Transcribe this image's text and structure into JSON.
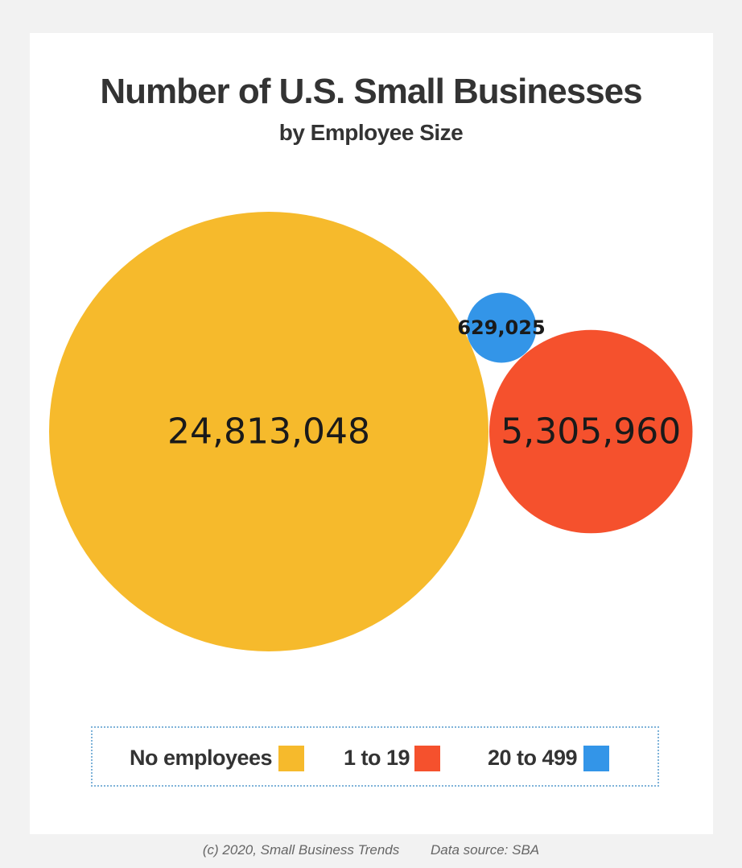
{
  "chart_data": {
    "type": "bubble",
    "title": "Number of U.S. Small Businesses",
    "subtitle": "by Employee Size",
    "series": [
      {
        "name": "No employees",
        "value": 24813048,
        "label": "24,813,048",
        "color": "#F6BA2C"
      },
      {
        "name": "1 to 19",
        "value": 5305960,
        "label": "5,305,960",
        "color": "#F5512D"
      },
      {
        "name": "20 to 499",
        "value": 629025,
        "label": "629,025",
        "color": "#3395E8"
      }
    ],
    "legend_position": "bottom"
  },
  "footer": {
    "credit": "(c) 2020, Small Business Trends",
    "source": "Data source: SBA"
  }
}
